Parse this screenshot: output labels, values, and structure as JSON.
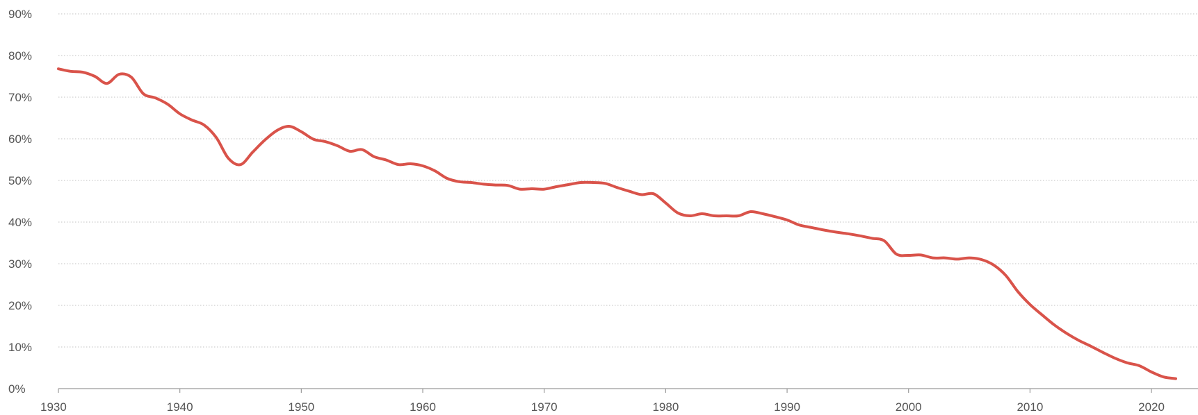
{
  "chart_data": {
    "type": "line",
    "title": "",
    "xlabel": "",
    "ylabel": "",
    "xlim": [
      1930,
      2022
    ],
    "ylim": [
      0,
      90
    ],
    "grid": true,
    "legend": "none",
    "x_ticks": [
      1930,
      1940,
      1950,
      1960,
      1970,
      1980,
      1990,
      2000,
      2010,
      2020
    ],
    "x_tick_labels": [
      "1930",
      "1940",
      "1950",
      "1960",
      "1970",
      "1980",
      "1990",
      "2000",
      "2010",
      "2020"
    ],
    "y_ticks": [
      0,
      10,
      20,
      30,
      40,
      50,
      60,
      70,
      80,
      90
    ],
    "y_tick_labels": [
      "0%",
      "10%",
      "20%",
      "30%",
      "40%",
      "50%",
      "60%",
      "70%",
      "80%",
      "90%"
    ],
    "series": [
      {
        "color": "#d9534a",
        "x": [
          1930,
          1931,
          1932,
          1933,
          1934,
          1935,
          1936,
          1937,
          1938,
          1939,
          1940,
          1941,
          1942,
          1943,
          1944,
          1945,
          1946,
          1947,
          1948,
          1949,
          1950,
          1951,
          1952,
          1953,
          1954,
          1955,
          1956,
          1957,
          1958,
          1959,
          1960,
          1961,
          1962,
          1963,
          1964,
          1965,
          1966,
          1967,
          1968,
          1969,
          1970,
          1971,
          1972,
          1973,
          1974,
          1975,
          1976,
          1977,
          1978,
          1979,
          1980,
          1981,
          1982,
          1983,
          1984,
          1985,
          1986,
          1987,
          1988,
          1989,
          1990,
          1991,
          1992,
          1993,
          1994,
          1995,
          1996,
          1997,
          1998,
          1999,
          2000,
          2001,
          2002,
          2003,
          2004,
          2005,
          2006,
          2007,
          2008,
          2009,
          2010,
          2011,
          2012,
          2013,
          2014,
          2015,
          2016,
          2017,
          2018,
          2019,
          2020,
          2021,
          2022
        ],
        "values": [
          76.8,
          76.2,
          76.0,
          75.0,
          73.3,
          75.5,
          74.8,
          70.8,
          69.8,
          68.3,
          66.0,
          64.5,
          63.3,
          60.3,
          55.3,
          53.8,
          56.8,
          59.7,
          62.0,
          63.0,
          61.7,
          59.9,
          59.3,
          58.3,
          57.0,
          57.4,
          55.7,
          54.9,
          53.8,
          54.0,
          53.5,
          52.3,
          50.5,
          49.7,
          49.5,
          49.1,
          48.9,
          48.8,
          47.9,
          48.0,
          47.9,
          48.5,
          49.0,
          49.5,
          49.5,
          49.3,
          48.3,
          47.4,
          46.6,
          46.8,
          44.6,
          42.2,
          41.5,
          42.0,
          41.5,
          41.5,
          41.5,
          42.5,
          42.0,
          41.3,
          40.5,
          39.3,
          38.7,
          38.1,
          37.6,
          37.2,
          36.7,
          36.1,
          35.5,
          32.3,
          32.0,
          32.1,
          31.4,
          31.4,
          31.1,
          31.4,
          31.0,
          29.7,
          27.2,
          23.3,
          20.2,
          17.7,
          15.3,
          13.3,
          11.6,
          10.2,
          8.7,
          7.3,
          6.2,
          5.5,
          4.0,
          2.8,
          2.4
        ]
      }
    ]
  }
}
